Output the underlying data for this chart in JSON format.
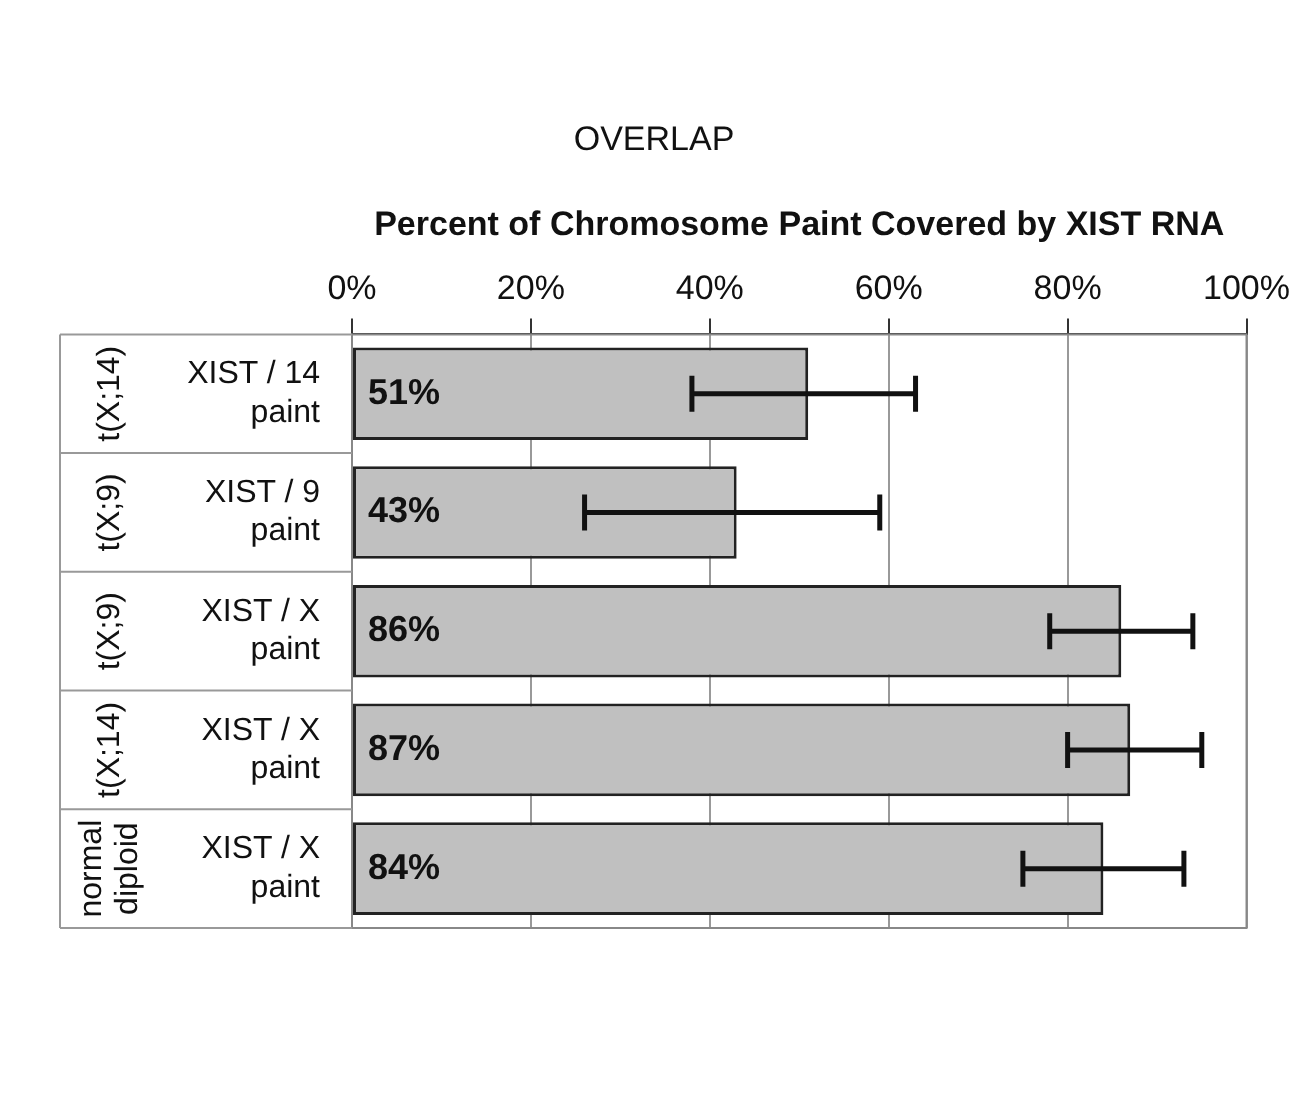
{
  "chart_data": {
    "type": "bar",
    "orientation": "horizontal",
    "title": "OVERLAP",
    "xlabel": "Percent of Chromosome Paint Covered by XIST RNA",
    "categories": [
      "XIST / 14 paint",
      "XIST / 9 paint",
      "XIST / X paint",
      "XIST / X paint",
      "XIST / X paint"
    ],
    "values": [
      51,
      43,
      86,
      87,
      84
    ],
    "color": "#c0c0c0",
    "errors": [
      [
        38,
        63
      ],
      [
        26,
        59
      ],
      [
        78,
        94
      ],
      [
        80,
        95
      ],
      [
        75,
        93
      ]
    ],
    "value_labels": [
      "51%",
      "43%",
      "86%",
      "87%",
      "84%"
    ],
    "annotations": [
      "t(X;14)",
      "t(X;9)",
      "t(X;9)",
      "t(X;14)",
      "normal diploid"
    ],
    "xlim": [
      0,
      100
    ],
    "xticks": [
      {
        "value": 0,
        "label": "0%"
      },
      {
        "value": 20,
        "label": "20%"
      },
      {
        "value": 40,
        "label": "40%"
      },
      {
        "value": 60,
        "label": "60%"
      },
      {
        "value": 80,
        "label": "80%"
      },
      {
        "value": 100,
        "label": "100%"
      }
    ],
    "grid": "x",
    "legend": false
  }
}
